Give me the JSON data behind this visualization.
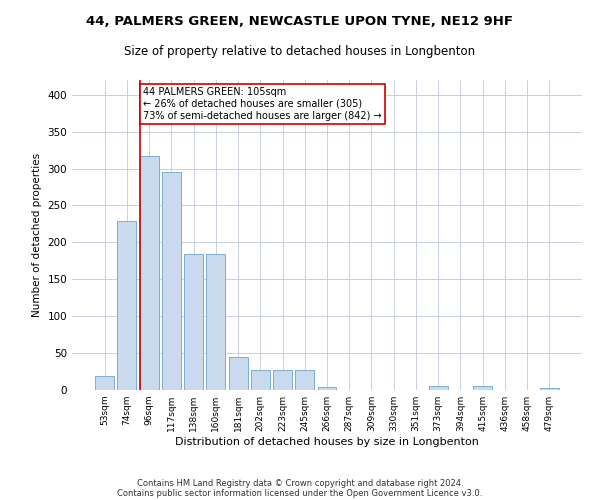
{
  "title_line1": "44, PALMERS GREEN, NEWCASTLE UPON TYNE, NE12 9HF",
  "title_line2": "Size of property relative to detached houses in Longbenton",
  "xlabel": "Distribution of detached houses by size in Longbenton",
  "ylabel": "Number of detached properties",
  "bar_color": "#c9d9ee",
  "bar_edge_color": "#7aafd4",
  "categories": [
    "53sqm",
    "74sqm",
    "96sqm",
    "117sqm",
    "138sqm",
    "160sqm",
    "181sqm",
    "202sqm",
    "223sqm",
    "245sqm",
    "266sqm",
    "287sqm",
    "309sqm",
    "330sqm",
    "351sqm",
    "373sqm",
    "394sqm",
    "415sqm",
    "436sqm",
    "458sqm",
    "479sqm"
  ],
  "values": [
    19,
    229,
    317,
    296,
    184,
    184,
    45,
    27,
    27,
    27,
    4,
    0,
    0,
    0,
    0,
    5,
    0,
    5,
    0,
    0,
    3
  ],
  "vline_x_index": 2,
  "vline_color": "#cc0000",
  "annotation_text": "44 PALMERS GREEN: 105sqm\n← 26% of detached houses are smaller (305)\n73% of semi-detached houses are larger (842) →",
  "annotation_box_color": "#ffffff",
  "annotation_box_edge": "#cc0000",
  "ylim": [
    0,
    420
  ],
  "yticks": [
    0,
    50,
    100,
    150,
    200,
    250,
    300,
    350,
    400
  ],
  "footnote_line1": "Contains HM Land Registry data © Crown copyright and database right 2024.",
  "footnote_line2": "Contains public sector information licensed under the Open Government Licence v3.0.",
  "bg_color": "#ffffff",
  "grid_color": "#c8cfe0"
}
